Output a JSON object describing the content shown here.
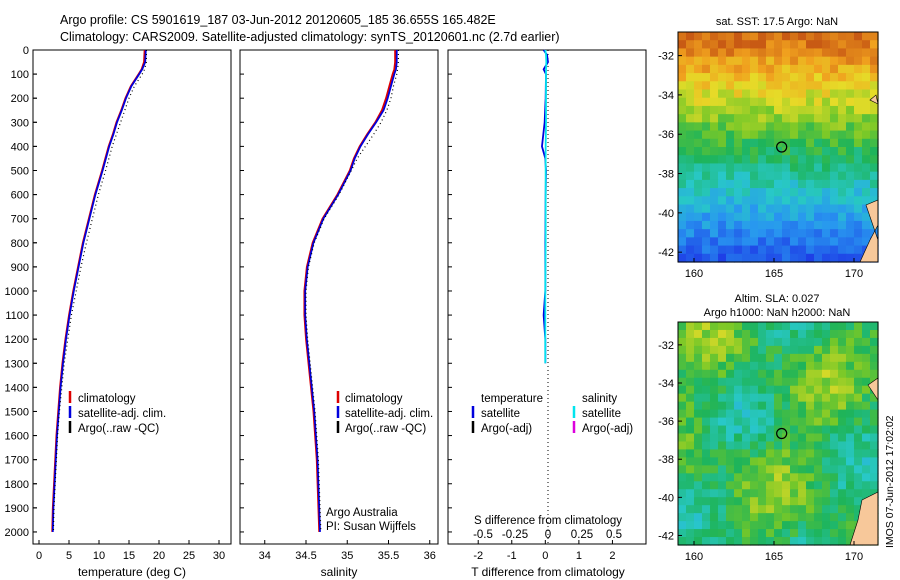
{
  "header": {
    "line1": "Argo profile: CS 5901619_187 03-Jun-2012 20120605_185 36.655S 165.482E",
    "line2": "Climatology: CARS2009. Satellite-adjusted climatology: synTS_20120601.nc (2.7d earlier)"
  },
  "depth_axis": {
    "ticks": [
      0,
      100,
      200,
      300,
      400,
      500,
      600,
      700,
      800,
      900,
      1000,
      1100,
      1200,
      1300,
      1400,
      1500,
      1600,
      1700,
      1800,
      1900,
      2000
    ]
  },
  "colors": {
    "climatology": "#dd0000",
    "satellite": "#0000dd",
    "argo": "#000000",
    "sat_salinity": "#00e5ee",
    "argo_adj_salinity": "#dd00dd"
  },
  "chart_data": [
    {
      "type": "line",
      "xlabel": "temperature (deg C)",
      "ylabel": "",
      "xlim": [
        -1,
        32
      ],
      "ylim": [
        2050,
        0
      ],
      "xticks": [
        0,
        5,
        10,
        15,
        20,
        25,
        30
      ],
      "depth": [
        0,
        50,
        80,
        100,
        150,
        200,
        250,
        300,
        350,
        400,
        500,
        600,
        700,
        800,
        900,
        1000,
        1100,
        1200,
        1300,
        1400,
        1500,
        1600,
        1700,
        1800,
        1900,
        2000
      ],
      "series": [
        {
          "name": "climatology",
          "color": "#dd0000",
          "values": [
            17.6,
            17.5,
            17.1,
            16.6,
            15.3,
            14.4,
            13.7,
            12.9,
            12.3,
            11.6,
            10.5,
            9.3,
            8.3,
            7.3,
            6.5,
            5.7,
            5.0,
            4.4,
            3.9,
            3.5,
            3.2,
            2.9,
            2.7,
            2.5,
            2.3,
            2.2
          ]
        },
        {
          "name": "satellite-adj. clim.",
          "color": "#0000dd",
          "values": [
            17.8,
            17.7,
            17.2,
            16.7,
            15.4,
            14.5,
            13.8,
            13.0,
            12.4,
            11.7,
            10.6,
            9.4,
            8.4,
            7.4,
            6.6,
            5.8,
            5.1,
            4.5,
            4.0,
            3.6,
            3.3,
            3.0,
            2.8,
            2.6,
            2.4,
            2.3
          ]
        },
        {
          "name": "Argo(..raw -QC)",
          "color": "#000000",
          "values": [
            17.9,
            17.9,
            17.6,
            17.2,
            15.9,
            15.0,
            14.3,
            13.6,
            12.9,
            12.2,
            11.1,
            9.9,
            8.9,
            7.9,
            7.0,
            6.2,
            5.4,
            4.8,
            4.2,
            3.8,
            3.4,
            3.1,
            2.9,
            2.7,
            2.5,
            2.4
          ]
        }
      ],
      "legend": [
        "climatology",
        "satellite-adj. clim.",
        "Argo(..raw -QC)"
      ]
    },
    {
      "type": "line",
      "xlabel": "salinity",
      "ylabel": "",
      "xlim": [
        33.7,
        36.1
      ],
      "ylim": [
        2050,
        0
      ],
      "xticks": [
        34,
        34.5,
        35,
        35.5,
        36
      ],
      "depth": [
        0,
        50,
        80,
        100,
        150,
        200,
        250,
        300,
        350,
        400,
        450,
        500,
        600,
        700,
        800,
        900,
        1000,
        1100,
        1200,
        1300,
        1400,
        1500,
        1600,
        1700,
        1800,
        1900,
        2000
      ],
      "series": [
        {
          "name": "climatology",
          "color": "#dd0000",
          "values": [
            35.58,
            35.58,
            35.57,
            35.55,
            35.51,
            35.47,
            35.42,
            35.34,
            35.24,
            35.15,
            35.08,
            35.03,
            34.88,
            34.7,
            34.58,
            34.51,
            34.48,
            34.48,
            34.5,
            34.53,
            34.56,
            34.59,
            34.61,
            34.63,
            34.64,
            34.65,
            34.66
          ]
        },
        {
          "name": "satellite-adj. clim.",
          "color": "#0000dd",
          "values": [
            35.6,
            35.6,
            35.59,
            35.57,
            35.53,
            35.49,
            35.44,
            35.35,
            35.25,
            35.16,
            35.09,
            35.04,
            34.89,
            34.71,
            34.59,
            34.52,
            34.49,
            34.49,
            34.51,
            34.54,
            34.57,
            34.6,
            34.62,
            34.64,
            34.65,
            34.66,
            34.67
          ]
        },
        {
          "name": "Argo(..raw -QC)",
          "color": "#000000",
          "values": [
            35.62,
            35.62,
            35.61,
            35.6,
            35.56,
            35.53,
            35.48,
            35.41,
            35.32,
            35.22,
            35.12,
            35.05,
            34.9,
            34.72,
            34.6,
            34.53,
            34.5,
            34.5,
            34.52,
            34.55,
            34.58,
            34.61,
            34.63,
            34.65,
            34.66,
            34.67,
            34.68
          ]
        }
      ],
      "legend": [
        "climatology",
        "satellite-adj. clim.",
        "Argo(..raw -QC)"
      ],
      "annotation": [
        "Argo Australia",
        "PI: Susan Wijffels"
      ]
    },
    {
      "type": "line",
      "xlabel": "T difference from climatology",
      "top_label": "S difference from climatology",
      "xlim": [
        -2.9,
        3.0
      ],
      "ylim": [
        2050,
        0
      ],
      "xticks": [
        -2,
        -1,
        0,
        1,
        2
      ],
      "top_ticks": [
        "-0.5",
        "-0.25",
        "0",
        "0.25",
        "0.5"
      ],
      "depth": [
        0,
        20,
        50,
        80,
        100,
        200,
        300,
        400,
        450,
        500,
        600,
        800,
        1000,
        1100,
        1200,
        1300
      ],
      "series": [
        {
          "name": "temperature satellite",
          "color": "#0000dd",
          "values": [
            -0.05,
            0.05,
            0.08,
            -0.05,
            0.02,
            0.01,
            -0.02,
            -0.1,
            0.0,
            0.02,
            0.01,
            0.0,
            0.0,
            -0.05,
            0.0,
            0.0
          ]
        },
        {
          "name": "salinity satellite",
          "color": "#00e5ee",
          "values": [
            0.0,
            0.02,
            0.03,
            0.02,
            0.02,
            0.02,
            0.02,
            0.01,
            0.01,
            0.01,
            0.01,
            0.01,
            0.0,
            0.0,
            0.0,
            0.0
          ]
        }
      ],
      "legend_temperature": {
        "heading": "temperature",
        "items": [
          "satellite",
          "Argo(-adj)"
        ]
      },
      "legend_salinity": {
        "heading": "salinity",
        "items": [
          "satellite",
          "Argo(-adj)"
        ]
      }
    },
    {
      "type": "heatmap",
      "title": "sat. SST: 17.5 Argo: NaN",
      "xticks": [
        160,
        165,
        170
      ],
      "yticks": [
        -32,
        -34,
        -36,
        -38,
        -40,
        -42
      ],
      "xlim": [
        159,
        171.5
      ],
      "ylim": [
        -42.5,
        -30.8
      ],
      "marker": [
        165.48,
        -36.65
      ]
    },
    {
      "type": "heatmap",
      "title_line1": "Altim. SLA: 0.027",
      "title_line2": "Argo h1000: NaN h2000: NaN",
      "xticks": [
        160,
        165,
        170
      ],
      "yticks": [
        -32,
        -34,
        -36,
        -38,
        -40,
        -42
      ],
      "xlim": [
        159,
        171.5
      ],
      "ylim": [
        -42.5,
        -30.8
      ],
      "marker": [
        165.48,
        -36.65
      ]
    }
  ],
  "footer_stamp": "IMOS 07-Jun-2012 17:02:02"
}
